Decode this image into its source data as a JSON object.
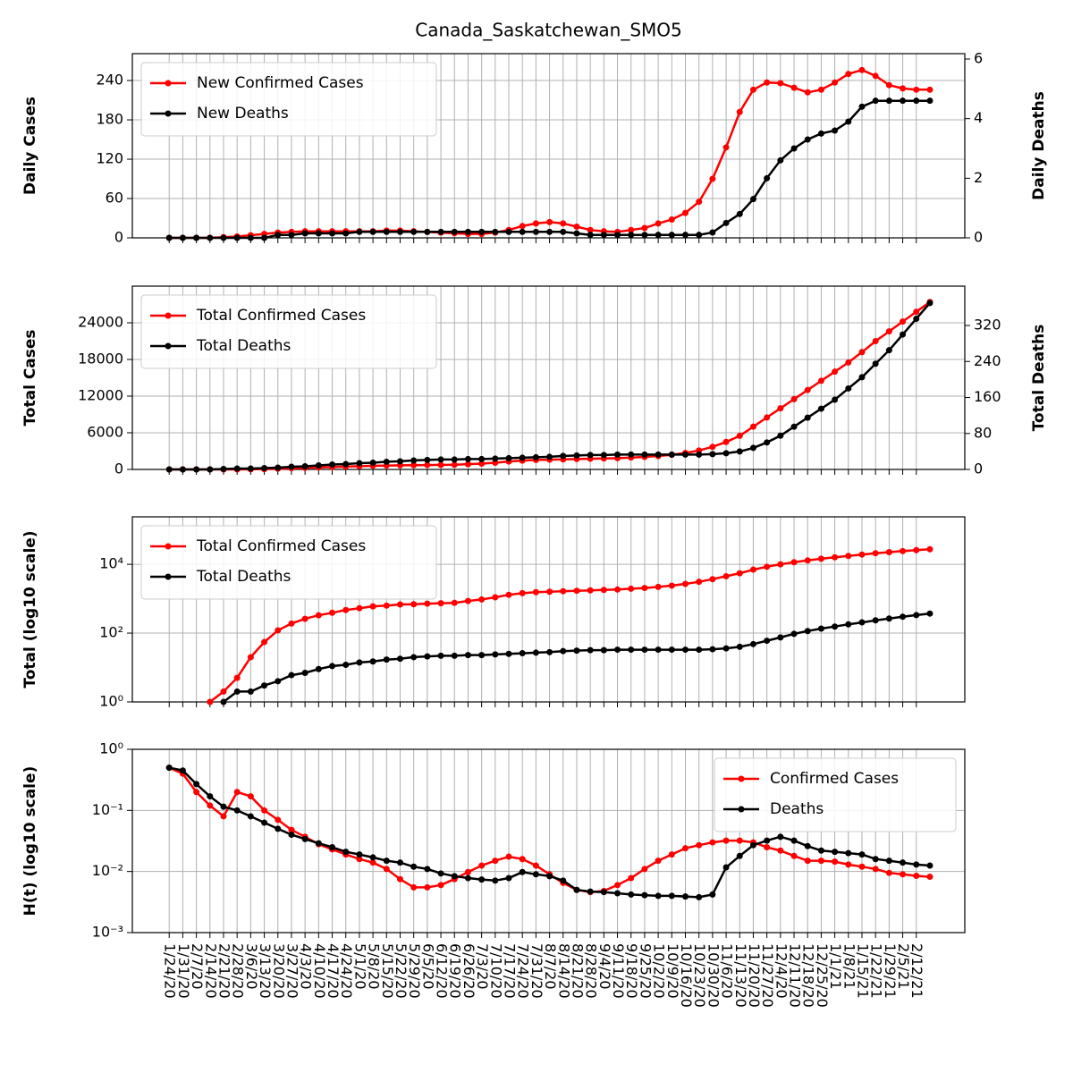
{
  "chart_data": [
    {
      "type": "line",
      "title": "Canada_Saskatchewan_SMO5",
      "ylabel": "Daily Cases",
      "y2label": "Daily Deaths",
      "ylim": [
        0,
        281
      ],
      "yticks": [
        0,
        60,
        120,
        180,
        240
      ],
      "y2lim": [
        0,
        6.18
      ],
      "y2ticks": [
        0,
        2,
        4,
        6
      ],
      "grid": true,
      "legend": "upper left",
      "series": [
        {
          "name": "New Confirmed Cases",
          "color": "#ff0000",
          "values": [
            0,
            0,
            0,
            0,
            1,
            2,
            4,
            6,
            8,
            9,
            10,
            10,
            10,
            10,
            10,
            10,
            11,
            11,
            10,
            9,
            8,
            7,
            6,
            6,
            8,
            12,
            18,
            22,
            24,
            22,
            17,
            12,
            10,
            9,
            12,
            15,
            22,
            28,
            38,
            55,
            90,
            138,
            192,
            226,
            237,
            236,
            229,
            222,
            226,
            237,
            250,
            256,
            247,
            233,
            228,
            226,
            226
          ]
        },
        {
          "name": "New Deaths",
          "color": "#000000",
          "axis": "y2",
          "values": [
            0,
            0,
            0,
            0,
            0,
            0,
            0,
            0,
            0.1,
            0.1,
            0.15,
            0.15,
            0.15,
            0.15,
            0.2,
            0.2,
            0.2,
            0.2,
            0.2,
            0.2,
            0.2,
            0.2,
            0.2,
            0.2,
            0.2,
            0.2,
            0.2,
            0.2,
            0.2,
            0.2,
            0.15,
            0.1,
            0.1,
            0.1,
            0.1,
            0.1,
            0.1,
            0.1,
            0.1,
            0.1,
            0.18,
            0.5,
            0.8,
            1.3,
            2.0,
            2.6,
            3.0,
            3.3,
            3.5,
            3.6,
            3.9,
            4.4,
            4.6,
            4.6,
            4.6,
            4.6,
            4.6
          ]
        }
      ]
    },
    {
      "type": "line",
      "ylabel": "Total Cases",
      "y2label": "Total Deaths",
      "ylim": [
        0,
        30000
      ],
      "yticks": [
        0,
        6000,
        12000,
        18000,
        24000
      ],
      "y2lim": [
        0,
        407.5
      ],
      "y2ticks": [
        0,
        80,
        160,
        240,
        320
      ],
      "grid": true,
      "legend": "upper left",
      "series": [
        {
          "name": "Total Confirmed Cases",
          "color": "#ff0000",
          "values": [
            0,
            0,
            0,
            1,
            2,
            5,
            20,
            55,
            120,
            190,
            260,
            330,
            390,
            470,
            530,
            600,
            630,
            680,
            690,
            720,
            740,
            760,
            860,
            950,
            1100,
            1300,
            1450,
            1550,
            1600,
            1650,
            1700,
            1750,
            1800,
            1850,
            1950,
            2050,
            2200,
            2400,
            2700,
            3100,
            3700,
            4500,
            5500,
            7000,
            8500,
            10000,
            11500,
            13000,
            14500,
            16000,
            17500,
            19200,
            21000,
            22600,
            24200,
            25800,
            27400
          ]
        },
        {
          "name": "Total Deaths",
          "color": "#000000",
          "axis": "y2",
          "values": [
            0,
            0,
            0,
            0,
            1,
            2,
            2,
            3,
            4,
            6,
            7,
            9,
            11,
            12,
            14,
            15,
            17,
            18,
            20,
            21,
            22,
            22,
            23,
            23,
            24,
            25,
            26,
            27,
            28,
            30,
            31,
            32,
            32,
            33,
            33,
            33,
            33,
            33,
            33,
            33,
            34,
            36,
            40,
            48,
            60,
            75,
            95,
            115,
            135,
            155,
            180,
            205,
            235,
            265,
            300,
            335,
            370
          ]
        }
      ]
    },
    {
      "type": "line",
      "ylabel": "Total (log10 scale)",
      "log": true,
      "ylim": [
        1,
        240000
      ],
      "yticks": [
        {
          "value": 1,
          "label": "10⁰"
        },
        {
          "value": 100,
          "label": "10²"
        },
        {
          "value": 10000,
          "label": "10⁴"
        }
      ],
      "grid": true,
      "legend": "upper left",
      "series": [
        {
          "name": "Total Confirmed Cases",
          "color": "#ff0000",
          "values": [
            null,
            null,
            null,
            1,
            2,
            5,
            20,
            55,
            120,
            190,
            260,
            330,
            390,
            470,
            530,
            600,
            630,
            680,
            690,
            720,
            740,
            760,
            860,
            950,
            1100,
            1300,
            1450,
            1550,
            1600,
            1650,
            1700,
            1750,
            1800,
            1850,
            1950,
            2050,
            2200,
            2400,
            2700,
            3100,
            3700,
            4500,
            5500,
            7000,
            8500,
            10000,
            11500,
            13000,
            14500,
            16000,
            17500,
            19200,
            21000,
            22600,
            24200,
            25800,
            27400
          ]
        },
        {
          "name": "Total Deaths",
          "color": "#000000",
          "values": [
            null,
            null,
            null,
            null,
            1,
            2,
            2,
            3,
            4,
            6,
            7,
            9,
            11,
            12,
            14,
            15,
            17,
            18,
            20,
            21,
            22,
            22,
            23,
            23,
            24,
            25,
            26,
            27,
            28,
            30,
            31,
            32,
            32,
            33,
            33,
            33,
            33,
            33,
            33,
            33,
            34,
            36,
            40,
            48,
            60,
            75,
            95,
            115,
            135,
            155,
            180,
            205,
            235,
            265,
            300,
            335,
            370
          ]
        }
      ]
    },
    {
      "type": "line",
      "ylabel": "H(t) (log10 scale)",
      "log": true,
      "ylim": [
        0.001,
        1
      ],
      "yticks": [
        {
          "value": 0.001,
          "label": "10⁻³"
        },
        {
          "value": 0.01,
          "label": "10⁻²"
        },
        {
          "value": 0.1,
          "label": "10⁻¹"
        },
        {
          "value": 1,
          "label": "10⁰"
        }
      ],
      "grid": true,
      "legend": "upper right",
      "x": [
        "1/24/20",
        "1/31/20",
        "2/7/20",
        "2/14/20",
        "2/21/20",
        "2/28/20",
        "3/6/20",
        "3/13/20",
        "3/20/20",
        "3/27/20",
        "4/3/20",
        "4/10/20",
        "4/17/20",
        "4/24/20",
        "5/1/20",
        "5/8/20",
        "5/15/20",
        "5/22/20",
        "5/29/20",
        "6/5/20",
        "6/12/20",
        "6/19/20",
        "6/26/20",
        "7/3/20",
        "7/10/20",
        "7/17/20",
        "7/24/20",
        "7/31/20",
        "8/7/20",
        "8/14/20",
        "8/21/20",
        "8/28/20",
        "9/4/20",
        "9/11/20",
        "9/18/20",
        "9/25/20",
        "10/2/20",
        "10/9/20",
        "10/16/20",
        "10/23/20",
        "10/30/20",
        "11/6/20",
        "11/13/20",
        "11/20/20",
        "11/27/20",
        "12/4/20",
        "12/11/20",
        "12/18/20",
        "12/25/20",
        "1/1/21",
        "1/8/21",
        "1/15/21",
        "1/22/21",
        "1/29/21",
        "2/5/21",
        "2/12/21",
        "2/19/21"
      ],
      "xlim": [
        "1/5/20",
        "3/9/21"
      ],
      "xticks": [
        "1/24/20",
        "1/31/20",
        "2/7/20",
        "2/14/20",
        "2/21/20",
        "2/28/20",
        "3/6/20",
        "3/13/20",
        "3/20/20",
        "3/27/20",
        "4/3/20",
        "4/10/20",
        "4/17/20",
        "4/24/20",
        "5/1/20",
        "5/8/20",
        "5/15/20",
        "5/22/20",
        "5/29/20",
        "6/5/20",
        "6/12/20",
        "6/19/20",
        "6/26/20",
        "7/3/20",
        "7/10/20",
        "7/17/20",
        "7/24/20",
        "7/31/20",
        "8/7/20",
        "8/14/20",
        "8/21/20",
        "8/28/20",
        "9/4/20",
        "9/11/20",
        "9/18/20",
        "9/25/20",
        "10/2/20",
        "10/9/20",
        "10/16/20",
        "10/23/20",
        "10/30/20",
        "11/6/20",
        "11/13/20",
        "11/20/20",
        "11/27/20",
        "12/4/20",
        "12/11/20",
        "12/18/20",
        "12/25/20",
        "1/1/21",
        "1/8/21",
        "1/15/21",
        "1/22/21",
        "1/29/21",
        "2/5/21",
        "2/12/21"
      ],
      "series": [
        {
          "name": "Confirmed Cases",
          "color": "#ff0000",
          "values": [
            0.5,
            0.4,
            0.2,
            0.12,
            0.08,
            0.2,
            0.17,
            0.1,
            0.07,
            0.048,
            0.037,
            0.028,
            0.023,
            0.019,
            0.016,
            0.014,
            0.011,
            0.0075,
            0.0055,
            0.0055,
            0.006,
            0.0075,
            0.0098,
            0.0125,
            0.015,
            0.0175,
            0.016,
            0.0125,
            0.009,
            0.0065,
            0.005,
            0.0046,
            0.0048,
            0.006,
            0.0078,
            0.011,
            0.015,
            0.019,
            0.024,
            0.027,
            0.03,
            0.032,
            0.032,
            0.03,
            0.025,
            0.022,
            0.018,
            0.015,
            0.015,
            0.0145,
            0.013,
            0.012,
            0.011,
            0.0095,
            0.009,
            0.0085,
            0.0082
          ]
        },
        {
          "name": "Deaths",
          "color": "#000000",
          "values": [
            0.5,
            0.45,
            0.27,
            0.17,
            0.115,
            0.1,
            0.08,
            0.063,
            0.05,
            0.04,
            0.034,
            0.029,
            0.025,
            0.021,
            0.019,
            0.017,
            0.015,
            0.014,
            0.012,
            0.011,
            0.0093,
            0.0084,
            0.0078,
            0.0074,
            0.0071,
            0.0078,
            0.0098,
            0.009,
            0.0084,
            0.0071,
            0.005,
            0.0047,
            0.0046,
            0.0044,
            0.0042,
            0.0041,
            0.004,
            0.004,
            0.0039,
            0.0038,
            0.0042,
            0.0117,
            0.018,
            0.027,
            0.032,
            0.037,
            0.032,
            0.026,
            0.022,
            0.021,
            0.02,
            0.019,
            0.016,
            0.015,
            0.014,
            0.013,
            0.0125
          ]
        }
      ]
    }
  ]
}
